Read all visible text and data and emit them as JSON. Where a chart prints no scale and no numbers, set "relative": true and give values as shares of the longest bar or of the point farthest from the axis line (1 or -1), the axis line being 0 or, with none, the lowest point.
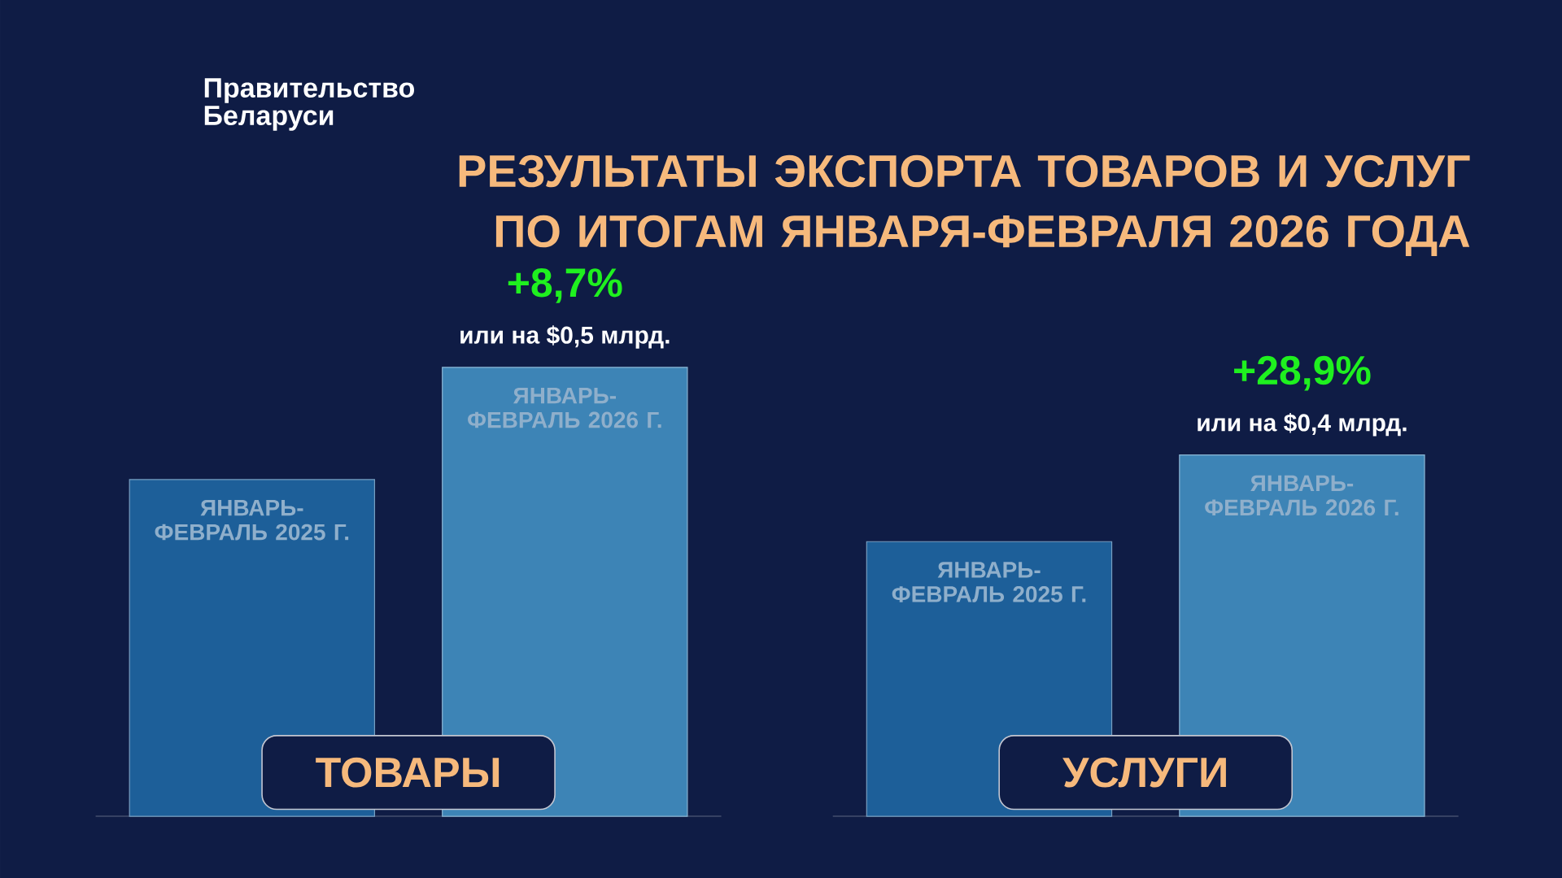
{
  "chart_data": [
    {
      "type": "bar",
      "title": "РЕЗУЛЬТАТЫ ЭКСПОРТА ТОВАРОВ И УСЛУГ ПО ИТОГАМ ЯНВАРЯ-ФЕВРАЛЯ 2026 ГОДА",
      "xlabel": "ТОВАРЫ",
      "relative": true,
      "categories": [
        "ЯНВАРЬ-ФЕВРАЛЬ 2025 Г.",
        "ЯНВАРЬ-ФЕВРАЛЬ 2026 Г."
      ],
      "values": [
        0.75,
        1
      ],
      "colors": [
        "#1d5f99",
        "#3d84b6"
      ],
      "annotations": [
        "Правительство Беларуси",
        {
          "text": "+8,7%",
          "x": "ЯНВАРЬ-ФЕВРАЛЬ 2026 Г.",
          "y": 1
        },
        {
          "text": "или на $0,5 млрд.",
          "x": "ЯНВАРЬ-ФЕВРАЛЬ 2026 Г.",
          "y": 1
        }
      ]
    },
    {
      "type": "bar",
      "xlabel": "УСЛУГИ",
      "relative": true,
      "categories": [
        "ЯНВАРЬ-ФЕВРАЛЬ 2025 Г.",
        "ЯНВАРЬ-ФЕВРАЛЬ 2026 Г."
      ],
      "values": [
        0.76,
        1
      ],
      "colors": [
        "#1d5f99",
        "#3d84b6"
      ],
      "annotations": [
        {
          "text": "+28,9%",
          "x": "ЯНВАРЬ-ФЕВРАЛЬ 2026 Г.",
          "y": 1
        },
        {
          "text": "или на $0,4 млрд.",
          "x": "ЯНВАРЬ-ФЕВРАЛЬ 2026 Г.",
          "y": 1
        }
      ]
    }
  ]
}
